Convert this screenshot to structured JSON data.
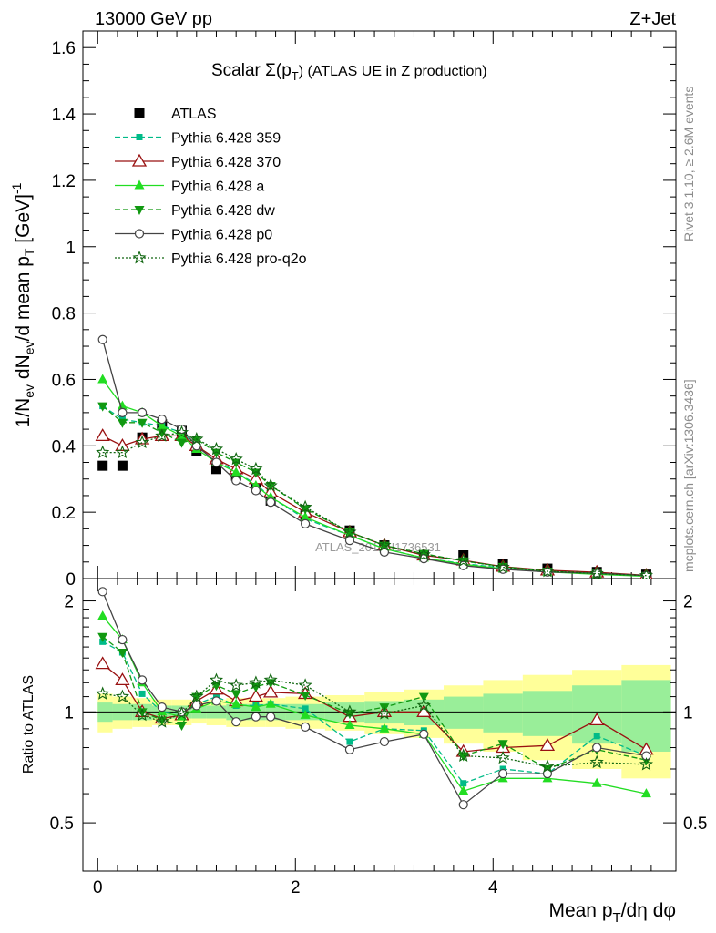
{
  "header": {
    "energy_label": "13000 GeV pp",
    "process_label": "Z+Jet"
  },
  "side_labels": {
    "rivet": "Rivet 3.1.10, ≥ 2.6M events",
    "mcplots": "mcplots.cern.ch [arXiv:1306.3436]"
  },
  "watermark": "ATLAS_2019_I1736531",
  "chart_data": [
    {
      "type": "line",
      "panel": "main",
      "title": "Scalar Σ(pT) (ATLAS UE in Z production)",
      "ylabel": "1/Nev dNev/d mean pT [GeV]-1",
      "ylim": [
        0,
        1.65
      ],
      "yticks": [
        0,
        0.2,
        0.4,
        0.6,
        0.8,
        1,
        1.2,
        1.4,
        1.6
      ],
      "ytick_labels": [
        "0",
        "0.2",
        "0.4",
        "0.6",
        "0.8",
        "1",
        "1.2",
        "1.4",
        "1.6"
      ],
      "xlim": [
        -0.15,
        5.85
      ],
      "legend": "top-left",
      "x": [
        0.05,
        0.25,
        0.45,
        0.65,
        0.85,
        1.0,
        1.2,
        1.4,
        1.6,
        1.75,
        2.1,
        2.55,
        2.9,
        3.3,
        3.7,
        4.1,
        4.55,
        5.05,
        5.55
      ],
      "series": [
        {
          "name": "ATLAS",
          "color": "#000000",
          "marker": "square",
          "values": [
            0.34,
            0.34,
            0.425,
            0.465,
            0.445,
            0.385,
            0.33,
            0.31,
            0.275,
            0.235,
            0.19,
            0.145,
            0.1,
            0.07,
            0.07,
            0.045,
            0.03,
            0.02,
            0.012
          ]
        },
        {
          "name": "Pythia 6.428 359",
          "color": "#00bb88",
          "marker": "smallsquare",
          "dash": "6,3",
          "values": [
            0.52,
            0.48,
            0.47,
            0.46,
            0.44,
            0.4,
            0.36,
            0.32,
            0.285,
            0.245,
            0.18,
            0.13,
            0.09,
            0.062,
            0.045,
            0.032,
            0.02,
            0.015,
            0.009
          ]
        },
        {
          "name": "Pythia 6.428 370",
          "color": "#991111",
          "marker": "triangle-open",
          "values": [
            0.43,
            0.4,
            0.42,
            0.43,
            0.43,
            0.4,
            0.36,
            0.33,
            0.3,
            0.26,
            0.2,
            0.14,
            0.1,
            0.07,
            0.055,
            0.036,
            0.025,
            0.019,
            0.01
          ]
        },
        {
          "name": "Pythia 6.428 a",
          "color": "#22dd22",
          "marker": "triangle",
          "values": [
            0.6,
            0.52,
            0.5,
            0.46,
            0.43,
            0.39,
            0.35,
            0.32,
            0.28,
            0.245,
            0.185,
            0.13,
            0.09,
            0.062,
            0.043,
            0.03,
            0.02,
            0.013,
            0.007
          ]
        },
        {
          "name": "Pythia 6.428 dw",
          "color": "#119911",
          "marker": "triangle-down",
          "dash": "6,3",
          "values": [
            0.52,
            0.47,
            0.47,
            0.44,
            0.41,
            0.42,
            0.38,
            0.35,
            0.32,
            0.28,
            0.21,
            0.14,
            0.1,
            0.075,
            0.053,
            0.036,
            0.022,
            0.016,
            0.009
          ]
        },
        {
          "name": "Pythia 6.428 p0",
          "color": "#444444",
          "marker": "circle-open",
          "values": [
            0.72,
            0.5,
            0.5,
            0.48,
            0.45,
            0.4,
            0.35,
            0.295,
            0.265,
            0.23,
            0.165,
            0.115,
            0.08,
            0.06,
            0.039,
            0.028,
            0.02,
            0.016,
            0.009
          ]
        },
        {
          "name": "Pythia 6.428 pro-q2o",
          "color": "#116611",
          "marker": "star-open",
          "dash": "2,2",
          "values": [
            0.38,
            0.38,
            0.41,
            0.43,
            0.44,
            0.42,
            0.39,
            0.36,
            0.33,
            0.28,
            0.215,
            0.14,
            0.1,
            0.072,
            0.054,
            0.034,
            0.022,
            0.015,
            0.009
          ]
        }
      ]
    },
    {
      "type": "line",
      "panel": "ratio",
      "ylabel": "Ratio to ATLAS",
      "xlabel": "Mean pT/dη dφ",
      "ylim": [
        0.37,
        2.3
      ],
      "yticks": [
        0.5,
        1,
        2
      ],
      "ytick_labels": [
        "0.5",
        "1",
        "2"
      ],
      "xlim": [
        -0.15,
        5.85
      ],
      "xticks": [
        0,
        2,
        4
      ],
      "xtick_labels": [
        "0",
        "2",
        "4"
      ],
      "x": [
        0.05,
        0.25,
        0.45,
        0.65,
        0.85,
        1.0,
        1.2,
        1.4,
        1.6,
        1.75,
        2.1,
        2.55,
        2.9,
        3.3,
        3.7,
        4.1,
        4.55,
        5.05,
        5.55
      ],
      "band_edges": [
        0.0,
        0.15,
        0.35,
        0.55,
        0.75,
        0.95,
        1.1,
        1.3,
        1.5,
        1.7,
        1.9,
        2.3,
        2.7,
        3.1,
        3.5,
        3.9,
        4.3,
        4.8,
        5.3,
        5.8
      ],
      "band_yellow": [
        0.12,
        0.1,
        0.09,
        0.08,
        0.08,
        0.07,
        0.08,
        0.09,
        0.09,
        0.09,
        0.1,
        0.11,
        0.13,
        0.15,
        0.18,
        0.22,
        0.26,
        0.3,
        0.34
      ],
      "band_green": [
        0.06,
        0.05,
        0.05,
        0.04,
        0.04,
        0.04,
        0.04,
        0.05,
        0.05,
        0.05,
        0.05,
        0.06,
        0.07,
        0.08,
        0.1,
        0.12,
        0.14,
        0.18,
        0.22
      ],
      "series": [
        {
          "name": "Pythia 6.428 359",
          "color": "#00bb88",
          "marker": "smallsquare",
          "dash": "6,3",
          "values": [
            1.55,
            1.45,
            1.12,
            1.0,
            0.99,
            1.05,
            1.1,
            1.04,
            1.04,
            1.05,
            1.02,
            0.83,
            0.9,
            0.89,
            0.64,
            0.7,
            0.68,
            0.86,
            0.76
          ]
        },
        {
          "name": "Pythia 6.428 370",
          "color": "#991111",
          "marker": "triangle-open",
          "values": [
            1.35,
            1.22,
            1.0,
            0.96,
            0.98,
            1.07,
            1.15,
            1.07,
            1.1,
            1.13,
            1.12,
            0.97,
            1.0,
            1.0,
            0.78,
            0.8,
            0.81,
            0.95,
            0.79
          ]
        },
        {
          "name": "Pythia 6.428 a",
          "color": "#22dd22",
          "marker": "triangle",
          "values": [
            1.82,
            1.57,
            1.2,
            1.0,
            0.97,
            1.02,
            1.07,
            1.05,
            1.03,
            1.05,
            0.98,
            0.92,
            0.9,
            0.87,
            0.61,
            0.66,
            0.66,
            0.64,
            0.6
          ]
        },
        {
          "name": "Pythia 6.428 dw",
          "color": "#119911",
          "marker": "triangle-down",
          "dash": "6,3",
          "values": [
            1.6,
            1.45,
            1.0,
            0.95,
            0.92,
            1.1,
            1.18,
            1.12,
            1.17,
            1.2,
            1.11,
            0.99,
            1.03,
            1.1,
            0.76,
            0.82,
            0.7,
            0.79,
            0.74
          ]
        },
        {
          "name": "Pythia 6.428 p0",
          "color": "#444444",
          "marker": "circle-open",
          "values": [
            2.12,
            1.57,
            1.22,
            1.03,
            1.0,
            1.04,
            1.07,
            0.94,
            0.97,
            0.97,
            0.91,
            0.79,
            0.83,
            0.87,
            0.56,
            0.68,
            0.68,
            0.8,
            0.76
          ]
        },
        {
          "name": "Pythia 6.428 pro-q2o",
          "color": "#116611",
          "marker": "star-open",
          "dash": "2,2",
          "values": [
            1.12,
            1.1,
            0.98,
            0.94,
            0.99,
            1.1,
            1.22,
            1.18,
            1.2,
            1.22,
            1.18,
            1.0,
            0.99,
            1.04,
            0.76,
            0.75,
            0.71,
            0.73,
            0.72
          ]
        }
      ]
    }
  ]
}
